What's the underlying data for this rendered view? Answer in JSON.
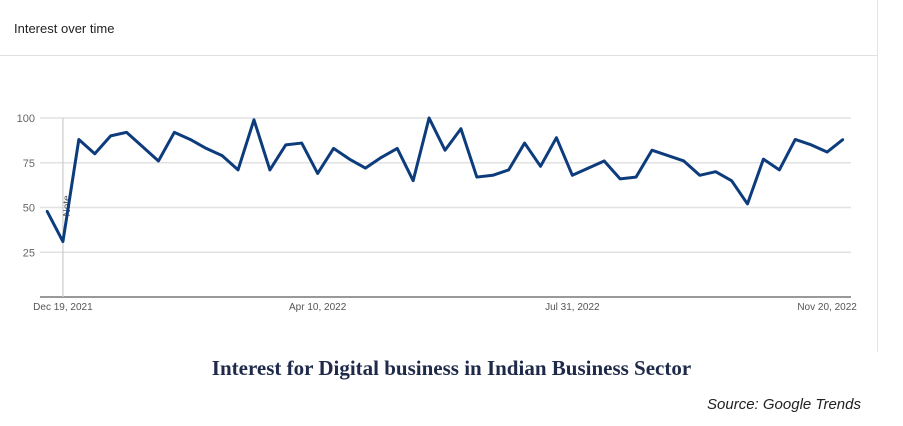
{
  "panel_title": "Interest over time",
  "chart_data": {
    "type": "line",
    "title": "Interest for Digital business in Indian Business Sector",
    "source": "Source: Google Trends",
    "xlabel": "",
    "ylabel": "",
    "ylim": [
      0,
      100
    ],
    "y_ticks": [
      "25",
      "50",
      "75",
      "100"
    ],
    "x_tick_labels": [
      {
        "label": "Dec 19, 2021",
        "index": 1
      },
      {
        "label": "Apr 10, 2022",
        "index": 17
      },
      {
        "label": "Jul 31, 2022",
        "index": 33
      },
      {
        "label": "Nov 20, 2022",
        "index": 49
      }
    ],
    "annotation": {
      "label": "Note",
      "index": 1
    },
    "grid": true,
    "line_color": "#0d3c7c",
    "series": [
      {
        "name": "Interest",
        "values": [
          48,
          31,
          88,
          80,
          90,
          92,
          84,
          76,
          92,
          88,
          83,
          79,
          71,
          99,
          71,
          85,
          86,
          69,
          83,
          77,
          72,
          78,
          83,
          65,
          100,
          82,
          94,
          67,
          68,
          71,
          86,
          73,
          89,
          68,
          72,
          76,
          66,
          67,
          82,
          79,
          76,
          68,
          70,
          65,
          52,
          77,
          71,
          88,
          85,
          81,
          88
        ]
      }
    ]
  }
}
